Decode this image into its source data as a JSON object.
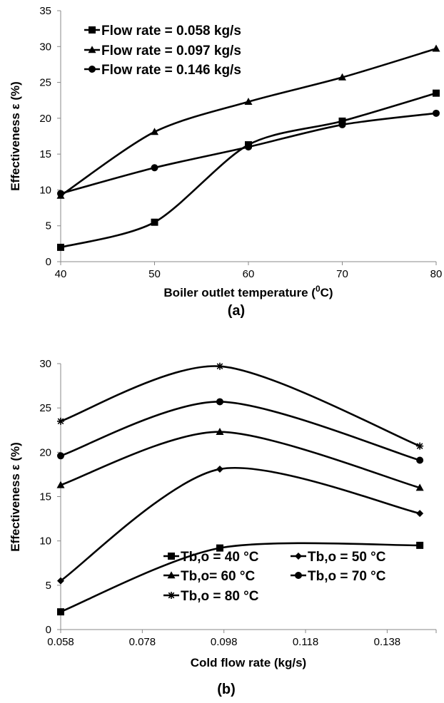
{
  "chart_data": [
    {
      "type": "line",
      "caption": "(a)",
      "xlabel_main": "Boiler outlet temperature (",
      "xlabel_sup": "0",
      "xlabel_end": "C)",
      "ylabel": "Effectiveness ε (%)",
      "xlim": [
        40,
        80
      ],
      "ylim": [
        0,
        35
      ],
      "xticks": [
        "40",
        "50",
        "60",
        "70",
        "80"
      ],
      "yticks": [
        "0",
        "5",
        "10",
        "15",
        "20",
        "25",
        "30",
        "35"
      ],
      "legend_position": "top-left",
      "x": [
        40,
        50,
        60,
        70,
        80
      ],
      "series": [
        {
          "name": "Flow rate = 0.058 kg/s",
          "marker": "square",
          "values": [
            2.0,
            5.5,
            16.3,
            19.6,
            23.5
          ]
        },
        {
          "name": "Flow rate = 0.097 kg/s",
          "marker": "triangle",
          "values": [
            9.2,
            18.1,
            22.3,
            25.7,
            29.7
          ]
        },
        {
          "name": "Flow rate = 0.146 kg/s",
          "marker": "circle",
          "values": [
            9.5,
            13.1,
            16.0,
            19.1,
            20.7
          ]
        }
      ]
    },
    {
      "type": "line",
      "caption": "(b)",
      "xlabel": "Cold flow rate (kg/s)",
      "ylabel": "Effectiveness ε (%)",
      "xlim": [
        0.058,
        0.15
      ],
      "ylim": [
        0,
        30
      ],
      "xticks": [
        "0.058",
        "0.078",
        "0.098",
        "0.118",
        "0.138"
      ],
      "yticks": [
        "0",
        "5",
        "10",
        "15",
        "20",
        "25",
        "30"
      ],
      "legend_position": "bottom",
      "x": [
        0.058,
        0.097,
        0.146
      ],
      "series": [
        {
          "name": "Tb,o = 40 °C",
          "marker": "square",
          "values": [
            2.0,
            9.2,
            9.5
          ]
        },
        {
          "name": "Tb,o = 50 °C",
          "marker": "diamond",
          "values": [
            5.5,
            18.1,
            13.1
          ]
        },
        {
          "name": "Tb,o= 60 °C",
          "marker": "triangle",
          "values": [
            16.3,
            22.3,
            16.0
          ]
        },
        {
          "name": "Tb,o = 70 °C",
          "marker": "circle",
          "values": [
            19.6,
            25.7,
            19.1
          ]
        },
        {
          "name": "Tb,o = 80 °C",
          "marker": "star",
          "values": [
            23.5,
            29.7,
            20.7
          ]
        }
      ]
    }
  ]
}
